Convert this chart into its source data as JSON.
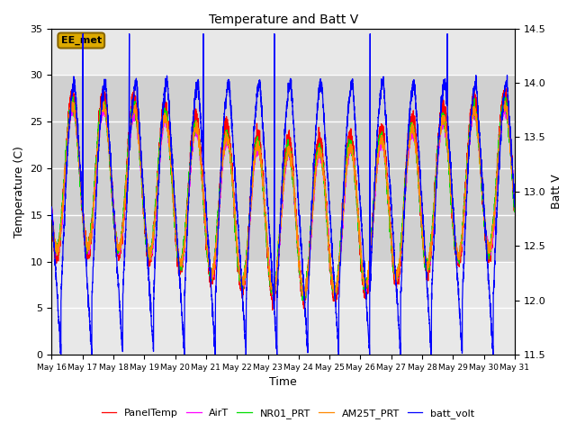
{
  "title": "Temperature and Batt V",
  "xlabel": "Time",
  "ylabel_left": "Temperature (C)",
  "ylabel_right": "Batt V",
  "annotation": "EE_met",
  "x_tick_labels": [
    "May 16",
    "May 17",
    "May 18",
    "May 19",
    "May 20",
    "May 21",
    "May 22",
    "May 23",
    "May 24",
    "May 25",
    "May 26",
    "May 27",
    "May 28",
    "May 29",
    "May 30",
    "May 31"
  ],
  "ylim_left": [
    0,
    35
  ],
  "ylim_right": [
    11.5,
    14.5
  ],
  "yticks_left": [
    0,
    5,
    10,
    15,
    20,
    25,
    30,
    35
  ],
  "yticks_right": [
    11.5,
    12.0,
    12.5,
    13.0,
    13.5,
    14.0,
    14.5
  ],
  "colors": {
    "PanelTemp": "#ff0000",
    "AirT": "#ff00ff",
    "NR01_PRT": "#00dd00",
    "AM25T_PRT": "#ff8800",
    "batt_volt": "#0000ff"
  },
  "legend_labels": [
    "PanelTemp",
    "AirT",
    "NR01_PRT",
    "AM25T_PRT",
    "batt_volt"
  ],
  "bg_color": "#e8e8e8",
  "shaded_band": [
    10,
    30
  ],
  "shaded_color": "#d0d0d0",
  "annotation_bg": "#ddaa00",
  "annotation_border": "#886600",
  "n_days": 15,
  "pts_per_day": 288
}
